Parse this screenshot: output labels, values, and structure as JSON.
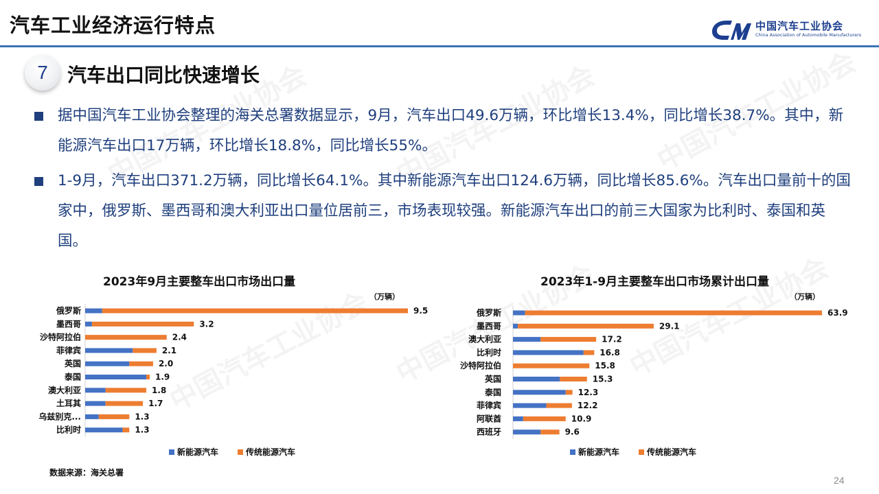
{
  "header": {
    "title": "汽车工业经济运行特点",
    "logo_cn": "中国汽车工业协会",
    "logo_en": "China Association of Automobile Manufacturers"
  },
  "section": {
    "number": "7",
    "title": "汽车出口同比快速增长"
  },
  "paragraphs": [
    "据中国汽车工业协会整理的海关总署数据显示，9月，汽车出口49.6万辆，环比增长13.4%，同比增长38.7%。其中，新能源汽车出口17万辆，环比增长18.8%，同比增长55%。",
    "1-9月，汽车出口371.2万辆，同比增长64.1%。其中新能源汽车出口124.6万辆，同比增长85.6%。汽车出口量前十的国家中，俄罗斯、墨西哥和澳大利亚出口量位居前三，市场表现较强。新能源汽车出口的前三大国家为比利时、泰国和英国。"
  ],
  "colors": {
    "nev": "#4472c4",
    "traditional": "#ed7d31",
    "accent": "#1f3f7d",
    "rule": "#3a73b6"
  },
  "chart_data": [
    {
      "type": "bar",
      "orientation": "horizontal",
      "stacked": true,
      "title": "2023年9月主要整车出口市场出口量",
      "unit": "（万辆）",
      "categories": [
        "俄罗斯",
        "墨西哥",
        "沙特阿拉伯",
        "菲律宾",
        "英国",
        "泰国",
        "澳大利亚",
        "土耳其",
        "乌兹别克...",
        "比利时"
      ],
      "totals": [
        9.5,
        3.2,
        2.4,
        2.1,
        2.0,
        1.9,
        1.8,
        1.7,
        1.3,
        1.3
      ],
      "total_labels": [
        "9.5",
        "3.2",
        "2.4",
        "2.1",
        "2.0",
        "1.9",
        "1.8",
        "1.7",
        "1.3",
        "1.3"
      ],
      "series": [
        {
          "name": "新能源汽车",
          "values": [
            0.5,
            0.2,
            0.0,
            1.4,
            1.3,
            1.8,
            0.6,
            0.6,
            0.4,
            1.1
          ]
        },
        {
          "name": "传统能源汽车",
          "values": [
            9.0,
            3.0,
            2.4,
            0.7,
            0.7,
            0.1,
            1.2,
            1.1,
            0.9,
            0.2
          ]
        }
      ],
      "xlim": [
        0,
        9.5
      ],
      "legend": "bottom"
    },
    {
      "type": "bar",
      "orientation": "horizontal",
      "stacked": true,
      "title": "2023年1-9月主要整车出口市场累计出口量",
      "unit": "（万辆）",
      "categories": [
        "俄罗斯",
        "墨西哥",
        "澳大利亚",
        "比利时",
        "沙特阿拉伯",
        "英国",
        "泰国",
        "菲律宾",
        "阿联酋",
        "西班牙"
      ],
      "totals": [
        63.9,
        29.1,
        17.2,
        16.8,
        15.8,
        15.3,
        12.3,
        12.2,
        10.9,
        9.6
      ],
      "total_labels": [
        "63.9",
        "29.1",
        "17.2",
        "16.8",
        "15.8",
        "15.3",
        "12.3",
        "12.2",
        "10.9",
        "9.6"
      ],
      "series": [
        {
          "name": "新能源汽车",
          "values": [
            2.5,
            1.0,
            5.7,
            14.6,
            0.0,
            9.7,
            10.9,
            6.9,
            2.1,
            5.7
          ]
        },
        {
          "name": "传统能源汽车",
          "values": [
            61.4,
            28.1,
            11.5,
            2.2,
            15.8,
            5.6,
            1.4,
            5.3,
            8.8,
            3.9
          ]
        }
      ],
      "xlim": [
        0,
        63.9
      ],
      "legend": "bottom"
    }
  ],
  "footer": {
    "source": "数据来源：海关总署",
    "page": "24"
  }
}
